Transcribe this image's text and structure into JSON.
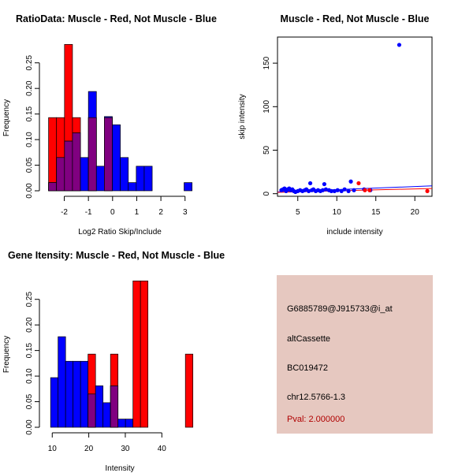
{
  "colors": {
    "muscle": "#ff0000",
    "not_muscle": "#0000ff",
    "overlap": "#800080",
    "panel": "#e6c8c0",
    "pval": "#b00000"
  },
  "chart_data": [
    {
      "id": "ratio",
      "type": "bar",
      "title": "RatioData: Muscle - Red, Not Muscle - Blue",
      "xlabel": "Log2 Ratio Skip/Include",
      "ylabel": "Frequency",
      "xlim": [
        -2.8,
        3.4
      ],
      "ylim": [
        0,
        0.285
      ],
      "xticks": [
        -2,
        -1,
        0,
        1,
        2,
        3
      ],
      "yticks": [
        0.0,
        0.05,
        0.1,
        0.15,
        0.2,
        0.25
      ],
      "ytick_labels": [
        "0.00",
        "0.05",
        "0.10",
        "0.15",
        "0.20",
        "0.25"
      ],
      "bin_width": 0.33,
      "bin_starts": [
        -2.65,
        -2.32,
        -1.99,
        -1.66,
        -1.33,
        -1.0,
        -0.67,
        -0.34,
        -0.01,
        0.32,
        0.65,
        0.98,
        1.31,
        1.64,
        1.97,
        2.3,
        2.63,
        2.96
      ],
      "series": [
        {
          "name": "Muscle",
          "color_key": "muscle",
          "values": [
            0.143,
            0.143,
            0.286,
            0.143,
            0.0,
            0.143,
            0.0,
            0.143,
            0.0,
            0.0,
            0.0,
            0.0,
            0.0,
            0.0,
            0.0,
            0.0,
            0.0,
            0.0
          ]
        },
        {
          "name": "Not Muscle",
          "color_key": "not_muscle",
          "values": [
            0.016,
            0.065,
            0.097,
            0.113,
            0.065,
            0.194,
            0.048,
            0.145,
            0.129,
            0.065,
            0.016,
            0.048,
            0.048,
            0.0,
            0.0,
            0.0,
            0.0,
            0.016
          ]
        }
      ]
    },
    {
      "id": "scatter",
      "type": "scatter",
      "title": "Muscle - Red, Not Muscle - Blue",
      "xlabel": "include intensity",
      "ylabel": "skip intensity",
      "xlim": [
        2.4,
        22.2
      ],
      "ylim": [
        -3,
        180
      ],
      "xticks": [
        5,
        10,
        15,
        20
      ],
      "yticks": [
        0,
        50,
        100,
        150
      ],
      "series": [
        {
          "name": "Not Muscle",
          "color_key": "not_muscle",
          "points": [
            [
              2.9,
              4
            ],
            [
              3.1,
              5
            ],
            [
              3.3,
              6
            ],
            [
              3.5,
              3
            ],
            [
              3.7,
              5
            ],
            [
              3.9,
              6
            ],
            [
              4.1,
              4
            ],
            [
              4.3,
              5
            ],
            [
              4.5,
              3
            ],
            [
              4.7,
              2
            ],
            [
              5.0,
              3
            ],
            [
              5.3,
              4
            ],
            [
              5.6,
              3
            ],
            [
              5.9,
              4
            ],
            [
              6.1,
              5
            ],
            [
              6.4,
              3
            ],
            [
              6.6,
              12
            ],
            [
              6.8,
              4
            ],
            [
              7.0,
              5
            ],
            [
              7.3,
              3
            ],
            [
              7.6,
              4
            ],
            [
              7.9,
              3
            ],
            [
              8.2,
              4
            ],
            [
              8.4,
              11
            ],
            [
              8.6,
              5
            ],
            [
              9.0,
              4
            ],
            [
              9.3,
              3
            ],
            [
              9.7,
              3
            ],
            [
              10.1,
              4
            ],
            [
              10.6,
              3
            ],
            [
              11.0,
              5
            ],
            [
              11.5,
              3
            ],
            [
              11.8,
              14
            ],
            [
              12.2,
              4
            ],
            [
              13.5,
              5
            ],
            [
              14.3,
              4
            ],
            [
              18.0,
              171
            ]
          ]
        },
        {
          "name": "Muscle",
          "color_key": "muscle",
          "points": [
            [
              12.8,
              12
            ],
            [
              13.6,
              4
            ],
            [
              14.2,
              4
            ],
            [
              21.6,
              3
            ]
          ]
        }
      ],
      "lines": [
        {
          "color_key": "not_muscle",
          "x": [
            2.4,
            22.2
          ],
          "y": [
            2.0,
            9.0
          ]
        },
        {
          "color_key": "muscle",
          "x": [
            2.4,
            22.2
          ],
          "y": [
            1.5,
            6.0
          ]
        }
      ]
    },
    {
      "id": "intensity",
      "type": "bar",
      "title": "Gene Itensity: Muscle - Red, Not Muscle - Blue",
      "xlabel": "Intensity",
      "ylabel": "Frequency",
      "xlim": [
        8,
        49
      ],
      "ylim": [
        0,
        0.285
      ],
      "xticks": [
        10,
        20,
        30,
        40
      ],
      "yticks": [
        0.0,
        0.05,
        0.1,
        0.15,
        0.2,
        0.25
      ],
      "ytick_labels": [
        "0.00",
        "0.05",
        "0.10",
        "0.15",
        "0.20",
        "0.25"
      ],
      "bin_width": 2.05,
      "bin_starts": [
        9.55,
        11.6,
        13.65,
        15.7,
        17.75,
        19.8,
        21.85,
        23.9,
        25.95,
        28.0,
        30.05,
        32.1,
        34.15,
        36.2,
        38.25,
        40.3,
        42.35,
        44.4,
        46.45
      ],
      "series": [
        {
          "name": "Muscle",
          "color_key": "muscle",
          "values": [
            0.0,
            0.0,
            0.0,
            0.0,
            0.0,
            0.143,
            0.0,
            0.0,
            0.143,
            0.0,
            0.0,
            0.286,
            0.286,
            0.0,
            0.0,
            0.0,
            0.0,
            0.0,
            0.143
          ]
        },
        {
          "name": "Not Muscle",
          "color_key": "not_muscle",
          "values": [
            0.097,
            0.177,
            0.129,
            0.129,
            0.129,
            0.065,
            0.081,
            0.048,
            0.081,
            0.016,
            0.016,
            0.0,
            0.0,
            0.0,
            0.0,
            0.0,
            0.0,
            0.0,
            0.0
          ]
        }
      ]
    }
  ],
  "info": {
    "probe_id": "G6885789@J915733@i_at",
    "event_type": "altCassette",
    "accession": "BC019472",
    "location": "chr12.5766-1.3",
    "pval": "Pval: 2.000000"
  }
}
